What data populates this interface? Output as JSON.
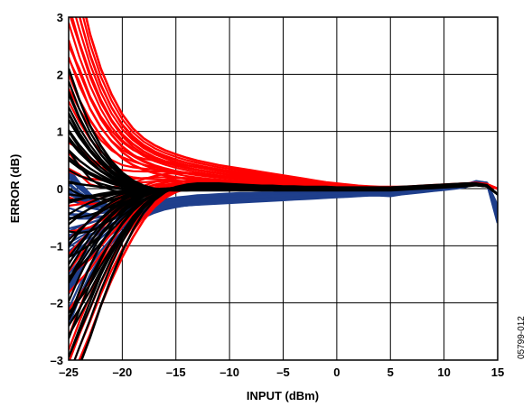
{
  "chart_data": {
    "type": "line",
    "title": "",
    "xlabel": "INPUT (dBm)",
    "ylabel": "ERROR (dB)",
    "xlim": [
      -25,
      15
    ],
    "ylim": [
      -3,
      3
    ],
    "x_ticks": [
      -25,
      -20,
      -15,
      -10,
      -5,
      0,
      5,
      10,
      15
    ],
    "y_ticks": [
      -3,
      -2,
      -1,
      0,
      1,
      2,
      3
    ],
    "x_tick_labels": [
      "–25",
      "–20",
      "–15",
      "–10",
      "–5",
      "0",
      "5",
      "10",
      "15"
    ],
    "y_tick_labels": [
      "–3",
      "–2",
      "–1",
      "0",
      "1",
      "2",
      "3"
    ],
    "grid": true,
    "legend": "none",
    "figure_note": "05799-012",
    "series_colors": [
      "#1f3f8c",
      "#ff0000",
      "#000000"
    ],
    "x": [
      -25,
      -24,
      -23,
      -22,
      -21,
      -20,
      -19,
      -18,
      -17,
      -16,
      -15,
      -14,
      -13,
      -12,
      -11,
      -10,
      -9,
      -8,
      -7,
      -6,
      -5,
      -4,
      -3,
      -2,
      -1,
      0,
      1,
      2,
      3,
      4,
      5,
      6,
      7,
      8,
      9,
      10,
      11,
      12,
      13,
      14,
      15
    ],
    "series": [
      {
        "color": "#1f3f8c",
        "values": [
          0.35,
          0.1,
          -0.1,
          -0.25,
          -0.33,
          -0.36,
          -0.36,
          -0.35,
          -0.33,
          -0.32,
          -0.3,
          -0.29,
          -0.28,
          -0.27,
          -0.26,
          -0.25,
          -0.24,
          -0.23,
          -0.22,
          -0.21,
          -0.2,
          -0.19,
          -0.18,
          -0.17,
          -0.16,
          -0.15,
          -0.14,
          -0.13,
          -0.12,
          -0.12,
          -0.13,
          -0.1,
          -0.08,
          -0.06,
          -0.04,
          -0.02,
          0.0,
          0.03,
          0.1,
          0.1,
          -0.6
        ]
      },
      {
        "color": "#1f3f8c",
        "values": [
          -1.2,
          -1.05,
          -0.9,
          -0.75,
          -0.62,
          -0.52,
          -0.45,
          -0.4,
          -0.36,
          -0.33,
          -0.31,
          -0.29,
          -0.27,
          -0.26,
          -0.25,
          -0.24,
          -0.23,
          -0.22,
          -0.21,
          -0.2,
          -0.19,
          -0.18,
          -0.17,
          -0.16,
          -0.15,
          -0.14,
          -0.13,
          -0.12,
          -0.11,
          -0.11,
          -0.12,
          -0.09,
          -0.07,
          -0.05,
          -0.03,
          -0.01,
          0.01,
          0.03,
          0.1,
          0.1,
          -0.55
        ]
      },
      {
        "color": "#1f3f8c",
        "values": [
          -2.4,
          -1.9,
          -1.5,
          -1.2,
          -0.95,
          -0.75,
          -0.6,
          -0.5,
          -0.42,
          -0.36,
          -0.32,
          -0.29,
          -0.27,
          -0.25,
          -0.24,
          -0.23,
          -0.22,
          -0.21,
          -0.2,
          -0.19,
          -0.18,
          -0.17,
          -0.16,
          -0.15,
          -0.14,
          -0.13,
          -0.12,
          -0.11,
          -0.1,
          -0.1,
          -0.11,
          -0.08,
          -0.06,
          -0.04,
          -0.02,
          0.0,
          0.02,
          0.04,
          0.1,
          0.1,
          -0.5
        ]
      },
      {
        "color": "#1f3f8c",
        "values": [
          -0.2,
          -0.25,
          -0.3,
          -0.32,
          -0.33,
          -0.33,
          -0.32,
          -0.3,
          -0.28,
          -0.26,
          -0.24,
          -0.22,
          -0.2,
          -0.19,
          -0.18,
          -0.17,
          -0.16,
          -0.15,
          -0.14,
          -0.13,
          -0.12,
          -0.11,
          -0.1,
          -0.09,
          -0.08,
          -0.08,
          -0.07,
          -0.07,
          -0.06,
          -0.06,
          -0.07,
          -0.05,
          -0.03,
          -0.02,
          0.0,
          0.02,
          0.04,
          0.06,
          0.12,
          0.1,
          -0.4
        ]
      },
      {
        "color": "#1f3f8c",
        "values": [
          0.2,
          0.0,
          -0.15,
          -0.25,
          -0.3,
          -0.3,
          -0.28,
          -0.25,
          -0.22,
          -0.19,
          -0.16,
          -0.14,
          -0.12,
          -0.11,
          -0.1,
          -0.09,
          -0.08,
          -0.08,
          -0.07,
          -0.07,
          -0.06,
          -0.06,
          -0.05,
          -0.05,
          -0.04,
          -0.04,
          -0.04,
          -0.03,
          -0.03,
          -0.03,
          -0.04,
          -0.02,
          -0.01,
          0.0,
          0.01,
          0.03,
          0.05,
          0.07,
          0.13,
          0.1,
          -0.3
        ]
      },
      {
        "color": "#ff0000",
        "values": [
          4.2,
          3.5,
          2.7,
          2.1,
          1.65,
          1.3,
          1.05,
          0.88,
          0.76,
          0.67,
          0.6,
          0.54,
          0.49,
          0.45,
          0.41,
          0.38,
          0.35,
          0.32,
          0.29,
          0.26,
          0.23,
          0.2,
          0.17,
          0.14,
          0.11,
          0.09,
          0.07,
          0.05,
          0.04,
          0.03,
          0.03,
          0.03,
          0.04,
          0.05,
          0.06,
          0.07,
          0.08,
          0.09,
          0.1,
          0.08,
          0.0
        ]
      },
      {
        "color": "#ff0000",
        "values": [
          3.2,
          2.55,
          2.0,
          1.55,
          1.2,
          0.95,
          0.78,
          0.65,
          0.55,
          0.48,
          0.42,
          0.37,
          0.33,
          0.3,
          0.27,
          0.24,
          0.22,
          0.2,
          0.18,
          0.16,
          0.14,
          0.12,
          0.1,
          0.08,
          0.07,
          0.06,
          0.05,
          0.04,
          0.03,
          0.02,
          0.02,
          0.02,
          0.03,
          0.04,
          0.05,
          0.06,
          0.07,
          0.08,
          0.09,
          0.07,
          0.0
        ]
      },
      {
        "color": "#ff0000",
        "values": [
          2.0,
          1.55,
          1.2,
          0.92,
          0.7,
          0.53,
          0.41,
          0.33,
          0.27,
          0.23,
          0.2,
          0.17,
          0.15,
          0.13,
          0.12,
          0.11,
          0.1,
          0.09,
          0.08,
          0.07,
          0.06,
          0.05,
          0.05,
          0.04,
          0.04,
          0.03,
          0.03,
          0.02,
          0.02,
          0.01,
          0.01,
          0.01,
          0.02,
          0.03,
          0.04,
          0.05,
          0.06,
          0.07,
          0.08,
          0.06,
          0.0
        ]
      },
      {
        "color": "#ff0000",
        "values": [
          -3.5,
          -3.0,
          -2.55,
          -2.05,
          -1.6,
          -1.2,
          -0.85,
          -0.55,
          -0.32,
          -0.16,
          -0.06,
          0.0,
          0.03,
          0.04,
          0.04,
          0.04,
          0.03,
          0.03,
          0.03,
          0.02,
          0.02,
          0.02,
          0.02,
          0.01,
          0.01,
          0.01,
          0.01,
          0.01,
          0.01,
          0.0,
          0.0,
          0.01,
          0.02,
          0.03,
          0.04,
          0.05,
          0.06,
          0.07,
          0.08,
          0.06,
          0.0
        ]
      },
      {
        "color": "#ff0000",
        "values": [
          -2.6,
          -2.1,
          -1.65,
          -1.25,
          -0.92,
          -0.65,
          -0.44,
          -0.28,
          -0.16,
          -0.08,
          -0.03,
          0.0,
          0.02,
          0.03,
          0.03,
          0.03,
          0.02,
          0.02,
          0.02,
          0.01,
          0.01,
          0.01,
          0.01,
          0.01,
          0.0,
          0.0,
          0.0,
          0.0,
          0.0,
          0.0,
          0.0,
          0.01,
          0.02,
          0.03,
          0.04,
          0.05,
          0.06,
          0.07,
          0.08,
          0.06,
          0.0
        ]
      },
      {
        "color": "#000000",
        "values": [
          2.1,
          1.55,
          1.1,
          0.75,
          0.48,
          0.28,
          0.14,
          0.05,
          0.0,
          -0.02,
          -0.03,
          -0.03,
          -0.03,
          -0.03,
          -0.03,
          -0.03,
          -0.03,
          -0.03,
          -0.03,
          -0.03,
          -0.03,
          -0.03,
          -0.03,
          -0.03,
          -0.03,
          -0.03,
          -0.03,
          -0.03,
          -0.03,
          -0.03,
          -0.03,
          -0.02,
          -0.01,
          0.0,
          0.01,
          0.02,
          0.03,
          0.04,
          0.06,
          0.04,
          -0.1
        ]
      },
      {
        "color": "#000000",
        "values": [
          1.2,
          0.9,
          0.65,
          0.44,
          0.27,
          0.15,
          0.06,
          0.01,
          -0.02,
          -0.03,
          -0.03,
          -0.03,
          -0.02,
          -0.02,
          -0.02,
          -0.02,
          -0.02,
          -0.02,
          -0.02,
          -0.02,
          -0.02,
          -0.02,
          -0.02,
          -0.02,
          -0.02,
          -0.02,
          -0.02,
          -0.02,
          -0.02,
          -0.02,
          -0.02,
          -0.01,
          0.0,
          0.01,
          0.02,
          0.03,
          0.04,
          0.05,
          0.06,
          0.04,
          -0.1
        ]
      },
      {
        "color": "#000000",
        "values": [
          0.5,
          0.36,
          0.25,
          0.16,
          0.09,
          0.04,
          0.01,
          -0.01,
          -0.02,
          -0.02,
          -0.02,
          -0.01,
          -0.01,
          -0.01,
          -0.01,
          -0.01,
          -0.01,
          -0.01,
          -0.01,
          -0.01,
          -0.01,
          -0.01,
          -0.01,
          -0.01,
          -0.01,
          -0.01,
          -0.01,
          -0.01,
          -0.01,
          -0.01,
          -0.01,
          0.0,
          0.01,
          0.02,
          0.03,
          0.04,
          0.05,
          0.06,
          0.06,
          0.04,
          -0.1
        ]
      },
      {
        "color": "#000000",
        "values": [
          -1.0,
          -0.75,
          -0.54,
          -0.37,
          -0.24,
          -0.14,
          -0.07,
          -0.03,
          -0.01,
          0.0,
          0.01,
          0.02,
          0.02,
          0.02,
          0.02,
          0.02,
          0.02,
          0.02,
          0.02,
          0.01,
          0.01,
          0.01,
          0.01,
          0.01,
          0.0,
          0.0,
          0.0,
          0.0,
          0.0,
          0.0,
          0.0,
          0.01,
          0.02,
          0.03,
          0.04,
          0.05,
          0.06,
          0.07,
          0.07,
          0.05,
          -0.1
        ]
      },
      {
        "color": "#000000",
        "values": [
          -2.3,
          -1.8,
          -1.35,
          -0.98,
          -0.67,
          -0.43,
          -0.26,
          -0.14,
          -0.06,
          -0.01,
          0.02,
          0.04,
          0.05,
          0.05,
          0.05,
          0.04,
          0.04,
          0.04,
          0.03,
          0.03,
          0.03,
          0.02,
          0.02,
          0.02,
          0.02,
          0.01,
          0.01,
          0.01,
          0.01,
          0.01,
          0.01,
          0.02,
          0.03,
          0.04,
          0.05,
          0.06,
          0.07,
          0.08,
          0.08,
          0.05,
          -0.1
        ]
      },
      {
        "color": "#000000",
        "values": [
          -3.6,
          -3.1,
          -2.6,
          -2.05,
          -1.55,
          -1.1,
          -0.72,
          -0.42,
          -0.2,
          -0.06,
          0.03,
          0.07,
          0.09,
          0.09,
          0.09,
          0.08,
          0.07,
          0.06,
          0.05,
          0.05,
          0.04,
          0.04,
          0.03,
          0.03,
          0.03,
          0.02,
          0.02,
          0.02,
          0.02,
          0.02,
          0.02,
          0.03,
          0.04,
          0.05,
          0.06,
          0.07,
          0.08,
          0.09,
          0.09,
          0.06,
          -0.1
        ]
      }
    ]
  }
}
